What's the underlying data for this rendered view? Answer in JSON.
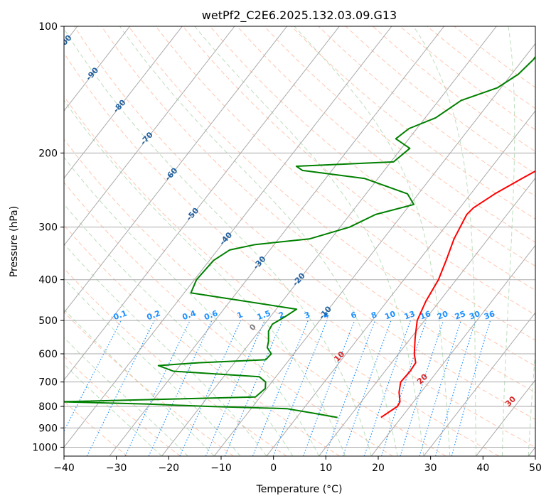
{
  "chart_data": {
    "type": "line",
    "title": "wetPf2_C2E6.2025.132.03.09.G13",
    "xlabel": "Temperature (°C)",
    "ylabel": "Pressure (hPa)",
    "xlim": [
      -40,
      50
    ],
    "ylim": [
      1050,
      100
    ],
    "y_scale": "log",
    "grid": true,
    "x_ticks": [
      -40,
      -30,
      -20,
      -10,
      0,
      10,
      20,
      30,
      40,
      50
    ],
    "y_ticks": [
      1000,
      900,
      800,
      700,
      600,
      500,
      400,
      300,
      200,
      100
    ],
    "isotherm_labels": [
      "-100",
      "-90",
      "-80",
      "-70",
      "-60",
      "-50",
      "-40",
      "-30",
      "-20",
      "-10"
    ],
    "mixing_ratio_labels": [
      "0.1",
      "0.2",
      "0.4",
      "0.6",
      "1",
      "1.5",
      "2",
      "3",
      "4",
      "6",
      "8",
      "10",
      "13",
      "16",
      "20",
      "25",
      "30",
      "36"
    ],
    "dry_adiabat_labels": [
      "0",
      "10",
      "20",
      "30",
      "40"
    ],
    "colors": {
      "temperature": "#ff0000",
      "dewpoint": "#008000",
      "isotherm_label": "#1f5f9f",
      "mixing_ratio": "#1e90ff",
      "dry_adiabat": "#ffa07a",
      "moist_adiabat": "#90c890",
      "dry_adiabat_label": "#d62728"
    },
    "series": [
      {
        "name": "Temperature",
        "points": [
          [
            16.1,
            850
          ],
          [
            17.6,
            800
          ],
          [
            17.4,
            780
          ],
          [
            15.8,
            740
          ],
          [
            14.6,
            700
          ],
          [
            14.8,
            660
          ],
          [
            14.6,
            630
          ],
          [
            13.0,
            600
          ],
          [
            10.8,
            550
          ],
          [
            8.6,
            500
          ],
          [
            7.4,
            450
          ],
          [
            6.6,
            400
          ],
          [
            5.2,
            360
          ],
          [
            3.5,
            320
          ],
          [
            2.3,
            280
          ],
          [
            2.6,
            270
          ],
          [
            4.6,
            250
          ],
          [
            7.5,
            230
          ],
          [
            9.1,
            220
          ],
          [
            9.5,
            200
          ],
          [
            10.0,
            180
          ],
          [
            9.5,
            160
          ],
          [
            8.6,
            150
          ],
          [
            9.5,
            140
          ],
          [
            12.0,
            130
          ],
          [
            13.5,
            120
          ],
          [
            13.0,
            112
          ],
          [
            13.8,
            100
          ]
        ]
      },
      {
        "name": "Dewpoint",
        "points": [
          [
            7.8,
            850
          ],
          [
            2.5,
            830
          ],
          [
            -3.2,
            810
          ],
          [
            -18.6,
            800
          ],
          [
            -30.3,
            790
          ],
          [
            -47.4,
            780
          ],
          [
            -10.9,
            760
          ],
          [
            -10.3,
            725
          ],
          [
            -11.2,
            700
          ],
          [
            -13.2,
            680
          ],
          [
            -30.4,
            660
          ],
          [
            -34.1,
            640
          ],
          [
            -26.9,
            630
          ],
          [
            -14.5,
            620
          ],
          [
            -14.3,
            600
          ],
          [
            -16.0,
            580
          ],
          [
            -16.7,
            560
          ],
          [
            -18.2,
            530
          ],
          [
            -18.5,
            510
          ],
          [
            -17.2,
            490
          ],
          [
            -16.1,
            470
          ],
          [
            -38.7,
            430
          ],
          [
            -39.6,
            400
          ],
          [
            -39.2,
            360
          ],
          [
            -37.7,
            340
          ],
          [
            -33.6,
            330
          ],
          [
            -24.1,
            320
          ],
          [
            -18.2,
            300
          ],
          [
            -15.1,
            280
          ],
          [
            -9.3,
            265
          ],
          [
            -12.1,
            250
          ],
          [
            -22.5,
            230
          ],
          [
            -35.6,
            220
          ],
          [
            -37.4,
            215
          ],
          [
            -19.5,
            210
          ],
          [
            -18.4,
            195
          ],
          [
            -22.5,
            185
          ],
          [
            -21.5,
            175
          ],
          [
            -18.0,
            165
          ],
          [
            -15.7,
            150
          ],
          [
            -10.7,
            140
          ],
          [
            -8.7,
            130
          ],
          [
            -8.0,
            120
          ],
          [
            -8.1,
            113
          ],
          [
            -4.5,
            106
          ],
          [
            -2.8,
            100
          ]
        ]
      }
    ]
  }
}
